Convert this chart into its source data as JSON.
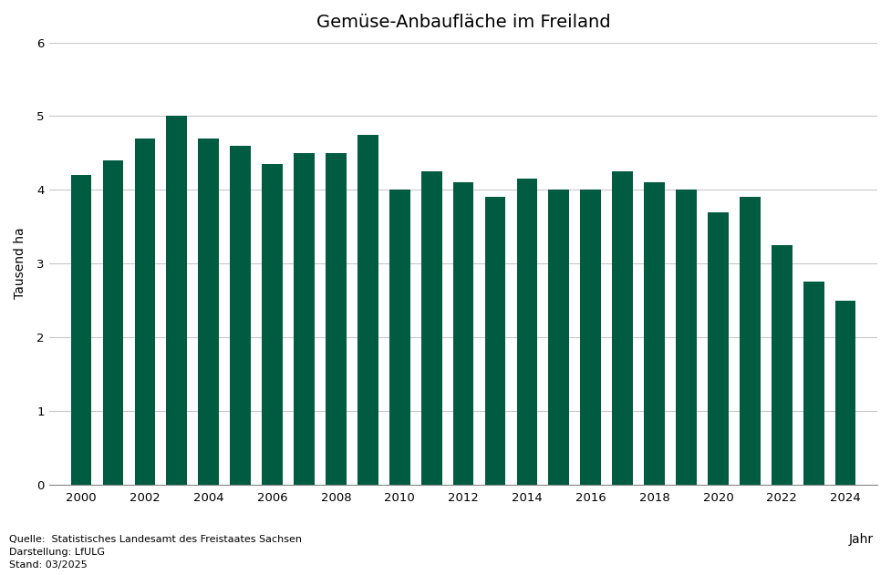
{
  "title": "Gemüse-Anbaufläche im Freiland",
  "ylabel": "Tausend ha",
  "xlabel": "Jahr",
  "bar_color": "#005C40",
  "background_color": "#ffffff",
  "years": [
    2000,
    2001,
    2002,
    2003,
    2004,
    2005,
    2006,
    2007,
    2008,
    2009,
    2010,
    2011,
    2012,
    2013,
    2014,
    2015,
    2016,
    2017,
    2018,
    2019,
    2020,
    2021,
    2022,
    2023,
    2024
  ],
  "values": [
    4.2,
    4.4,
    4.7,
    5.0,
    4.7,
    4.6,
    4.35,
    4.5,
    4.5,
    4.75,
    4.0,
    4.25,
    4.1,
    3.9,
    4.15,
    4.0,
    4.0,
    4.25,
    4.1,
    4.0,
    3.7,
    3.9,
    3.25,
    2.75,
    2.5
  ],
  "ylim": [
    0,
    6
  ],
  "yticks": [
    0,
    1,
    2,
    3,
    4,
    5,
    6
  ],
  "xticks": [
    2000,
    2002,
    2004,
    2006,
    2008,
    2010,
    2012,
    2014,
    2016,
    2018,
    2020,
    2022,
    2024
  ],
  "grid_color": "#c8c8c8",
  "source_text": "Quelle:  Statistisches Landesamt des Freistaates Sachsen\nDarstellung: LfULG\nStand: 03/2025",
  "source_fontsize": 8,
  "title_fontsize": 14,
  "bar_width": 0.65
}
